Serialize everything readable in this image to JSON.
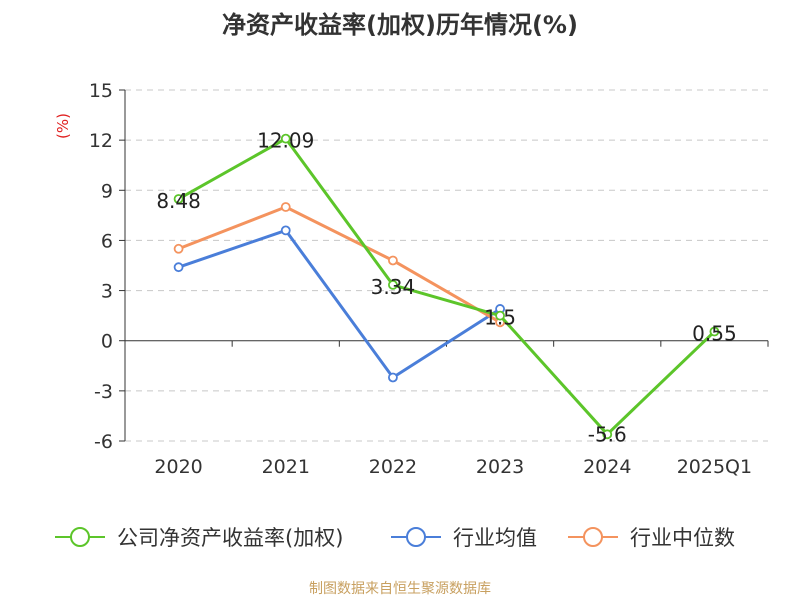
{
  "chart_data": {
    "type": "line",
    "title": "净资产收益率(加权)历年情况(%)",
    "ylabel": "(%)",
    "xlabel": "",
    "categories": [
      "2020",
      "2021",
      "2022",
      "2023",
      "2024",
      "2025Q1"
    ],
    "ylim": [
      -6,
      15
    ],
    "yticks": [
      15,
      12,
      9,
      6,
      3,
      0,
      -3,
      -6
    ],
    "grid": true,
    "legend_position": "bottom",
    "series": [
      {
        "name": "公司净资产收益率(加权)",
        "color": "#5cc52a",
        "values": [
          8.48,
          12.09,
          3.34,
          1.5,
          -5.6,
          0.55
        ],
        "labels": [
          "8.48",
          "12.09",
          "3.34",
          "1.5",
          "-5.6",
          "0.55"
        ]
      },
      {
        "name": "行业均值",
        "color": "#4a7ed9",
        "values": [
          4.4,
          6.6,
          -2.2,
          1.9,
          null,
          null
        ]
      },
      {
        "name": "行业中位数",
        "color": "#f4935e",
        "values": [
          5.5,
          8.0,
          4.8,
          1.1,
          null,
          null
        ]
      }
    ]
  },
  "footer": {
    "source": "制图数据来自恒生聚源数据库"
  }
}
